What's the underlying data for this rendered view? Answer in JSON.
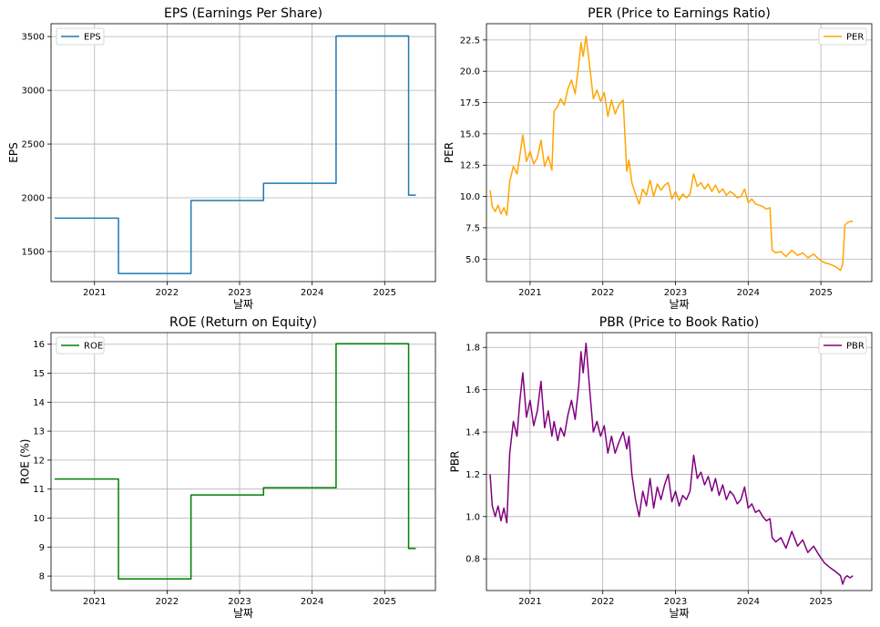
{
  "colors": {
    "eps": "#1f77b4",
    "per": "#ffa500",
    "roe": "#008000",
    "pbr": "#800080",
    "grid": "#b0b0b0",
    "axis": "#000000"
  },
  "chart_data": [
    {
      "id": "eps",
      "type": "line",
      "title": "EPS (Earnings Per Share)",
      "xlabel": "날짜",
      "ylabel": "EPS",
      "xlim": [
        2020.4,
        2025.7
      ],
      "ylim": [
        1220,
        3620
      ],
      "xticks": [
        2021,
        2022,
        2023,
        2024,
        2025
      ],
      "xtick_labels": [
        "2021",
        "2022",
        "2023",
        "2024",
        "2025"
      ],
      "yticks": [
        1500,
        2000,
        2500,
        3000,
        3500
      ],
      "ytick_labels": [
        "1500",
        "2000",
        "2500",
        "3000",
        "3500"
      ],
      "grid": true,
      "legend": "upper left",
      "series": [
        {
          "name": "EPS",
          "step": true,
          "x": [
            2020.45,
            2021.33,
            2021.33,
            2022.33,
            2022.33,
            2023.33,
            2023.33,
            2024.33,
            2024.33,
            2025.33,
            2025.33,
            2025.43
          ],
          "y": [
            1810,
            1810,
            1295,
            1295,
            1975,
            1975,
            2135,
            2135,
            3505,
            3505,
            2025,
            2025
          ]
        }
      ]
    },
    {
      "id": "per",
      "type": "line",
      "title": "PER (Price to Earnings Ratio)",
      "xlabel": "날짜",
      "ylabel": "PER",
      "xlim": [
        2020.4,
        2025.7
      ],
      "ylim": [
        3.2,
        23.8
      ],
      "xticks": [
        2021,
        2022,
        2023,
        2024,
        2025
      ],
      "xtick_labels": [
        "2021",
        "2022",
        "2023",
        "2024",
        "2025"
      ],
      "yticks": [
        5,
        7.5,
        10,
        12.5,
        15,
        17.5,
        20,
        22.5
      ],
      "ytick_labels": [
        "5.0",
        "7.5",
        "10.0",
        "12.5",
        "15.0",
        "17.5",
        "20.0",
        "22.5"
      ],
      "grid": true,
      "legend": "upper right",
      "series": [
        {
          "name": "PER",
          "x": [
            2020.45,
            2020.48,
            2020.52,
            2020.56,
            2020.6,
            2020.64,
            2020.68,
            2020.72,
            2020.77,
            2020.82,
            2020.86,
            2020.9,
            2020.95,
            2021.0,
            2021.05,
            2021.1,
            2021.15,
            2021.2,
            2021.25,
            2021.3,
            2021.33,
            2021.38,
            2021.42,
            2021.47,
            2021.52,
            2021.57,
            2021.62,
            2021.67,
            2021.7,
            2021.73,
            2021.77,
            2021.82,
            2021.87,
            2021.92,
            2021.97,
            2022.02,
            2022.07,
            2022.12,
            2022.17,
            2022.22,
            2022.28,
            2022.33,
            2022.36,
            2022.4,
            2022.45,
            2022.5,
            2022.55,
            2022.6,
            2022.65,
            2022.7,
            2022.75,
            2022.8,
            2022.85,
            2022.9,
            2022.95,
            2023.0,
            2023.05,
            2023.1,
            2023.15,
            2023.2,
            2023.25,
            2023.3,
            2023.35,
            2023.4,
            2023.45,
            2023.5,
            2023.55,
            2023.6,
            2023.65,
            2023.7,
            2023.75,
            2023.8,
            2023.85,
            2023.9,
            2023.95,
            2024.0,
            2024.05,
            2024.1,
            2024.15,
            2024.2,
            2024.25,
            2024.3,
            2024.33,
            2024.38,
            2024.45,
            2024.52,
            2024.6,
            2024.68,
            2024.75,
            2024.82,
            2024.9,
            2024.97,
            2025.05,
            2025.12,
            2025.2,
            2025.27,
            2025.3,
            2025.33,
            2025.36,
            2025.4,
            2025.44
          ],
          "y": [
            10.5,
            9.2,
            8.8,
            9.3,
            8.6,
            9.1,
            8.5,
            11.2,
            12.4,
            11.8,
            13.3,
            14.9,
            12.8,
            13.6,
            12.6,
            13.1,
            14.5,
            12.4,
            13.2,
            12.1,
            16.8,
            17.2,
            17.8,
            17.3,
            18.6,
            19.3,
            18.2,
            20.6,
            22.3,
            21.2,
            22.8,
            20.4,
            17.8,
            18.5,
            17.6,
            18.3,
            16.4,
            17.7,
            16.6,
            17.3,
            17.7,
            12.0,
            12.9,
            11.1,
            10.2,
            9.4,
            10.6,
            10.1,
            11.3,
            10.0,
            11.0,
            10.5,
            10.9,
            11.1,
            9.8,
            10.4,
            9.7,
            10.2,
            9.9,
            10.2,
            11.8,
            10.8,
            11.1,
            10.6,
            11.0,
            10.4,
            10.9,
            10.3,
            10.6,
            10.1,
            10.4,
            10.2,
            9.9,
            10.0,
            10.6,
            9.5,
            9.8,
            9.4,
            9.3,
            9.2,
            9.0,
            9.1,
            5.7,
            5.5,
            5.6,
            5.2,
            5.7,
            5.3,
            5.5,
            5.1,
            5.4,
            5.0,
            4.7,
            4.6,
            4.4,
            4.1,
            4.6,
            7.7,
            7.9,
            8.0,
            8.0
          ]
        }
      ]
    },
    {
      "id": "roe",
      "type": "line",
      "title": "ROE (Return on Equity)",
      "xlabel": "날짜",
      "ylabel": "ROE (%)",
      "xlim": [
        2020.4,
        2025.7
      ],
      "ylim": [
        7.5,
        16.4
      ],
      "xticks": [
        2021,
        2022,
        2023,
        2024,
        2025
      ],
      "xtick_labels": [
        "2021",
        "2022",
        "2023",
        "2024",
        "2025"
      ],
      "yticks": [
        8,
        9,
        10,
        11,
        12,
        13,
        14,
        15,
        16
      ],
      "ytick_labels": [
        "8",
        "9",
        "10",
        "11",
        "12",
        "13",
        "14",
        "15",
        "16"
      ],
      "grid": true,
      "legend": "upper left",
      "series": [
        {
          "name": "ROE",
          "step": true,
          "x": [
            2020.45,
            2021.33,
            2021.33,
            2022.33,
            2022.33,
            2023.33,
            2023.33,
            2024.33,
            2024.33,
            2025.33,
            2025.33,
            2025.43
          ],
          "y": [
            11.35,
            11.35,
            7.9,
            7.9,
            10.8,
            10.8,
            11.05,
            11.05,
            16.02,
            16.02,
            8.95,
            8.95
          ]
        }
      ]
    },
    {
      "id": "pbr",
      "type": "line",
      "title": "PBR (Price to Book Ratio)",
      "xlabel": "날짜",
      "ylabel": "PBR",
      "xlim": [
        2020.4,
        2025.7
      ],
      "ylim": [
        0.65,
        1.87
      ],
      "xticks": [
        2021,
        2022,
        2023,
        2024,
        2025
      ],
      "xtick_labels": [
        "2021",
        "2022",
        "2023",
        "2024",
        "2025"
      ],
      "yticks": [
        0.8,
        1.0,
        1.2,
        1.4,
        1.6,
        1.8
      ],
      "ytick_labels": [
        "0.8",
        "1.0",
        "1.2",
        "1.4",
        "1.6",
        "1.8"
      ],
      "grid": true,
      "legend": "upper right",
      "series": [
        {
          "name": "PBR",
          "x": [
            2020.45,
            2020.48,
            2020.52,
            2020.56,
            2020.6,
            2020.64,
            2020.68,
            2020.72,
            2020.77,
            2020.82,
            2020.86,
            2020.9,
            2020.95,
            2021.0,
            2021.05,
            2021.1,
            2021.15,
            2021.2,
            2021.25,
            2021.3,
            2021.33,
            2021.38,
            2021.42,
            2021.47,
            2021.52,
            2021.57,
            2021.62,
            2021.67,
            2021.7,
            2021.73,
            2021.77,
            2021.82,
            2021.87,
            2021.92,
            2021.97,
            2022.02,
            2022.07,
            2022.12,
            2022.17,
            2022.22,
            2022.28,
            2022.33,
            2022.36,
            2022.4,
            2022.45,
            2022.5,
            2022.55,
            2022.6,
            2022.65,
            2022.7,
            2022.75,
            2022.8,
            2022.85,
            2022.9,
            2022.95,
            2023.0,
            2023.05,
            2023.1,
            2023.15,
            2023.2,
            2023.25,
            2023.3,
            2023.35,
            2023.4,
            2023.45,
            2023.5,
            2023.55,
            2023.6,
            2023.65,
            2023.7,
            2023.75,
            2023.8,
            2023.85,
            2023.9,
            2023.95,
            2024.0,
            2024.05,
            2024.1,
            2024.15,
            2024.2,
            2024.25,
            2024.3,
            2024.33,
            2024.38,
            2024.45,
            2024.52,
            2024.6,
            2024.68,
            2024.75,
            2024.82,
            2024.9,
            2024.97,
            2025.05,
            2025.12,
            2025.2,
            2025.27,
            2025.3,
            2025.33,
            2025.36,
            2025.4,
            2025.44
          ],
          "y": [
            1.2,
            1.05,
            1.0,
            1.05,
            0.98,
            1.04,
            0.97,
            1.3,
            1.45,
            1.38,
            1.55,
            1.68,
            1.47,
            1.55,
            1.43,
            1.5,
            1.64,
            1.42,
            1.5,
            1.38,
            1.45,
            1.36,
            1.42,
            1.38,
            1.48,
            1.55,
            1.46,
            1.62,
            1.78,
            1.68,
            1.82,
            1.6,
            1.4,
            1.45,
            1.38,
            1.43,
            1.3,
            1.38,
            1.3,
            1.35,
            1.4,
            1.32,
            1.38,
            1.2,
            1.08,
            1.0,
            1.12,
            1.05,
            1.18,
            1.04,
            1.14,
            1.08,
            1.15,
            1.2,
            1.07,
            1.12,
            1.05,
            1.1,
            1.08,
            1.12,
            1.29,
            1.18,
            1.21,
            1.15,
            1.19,
            1.12,
            1.18,
            1.1,
            1.15,
            1.08,
            1.12,
            1.1,
            1.06,
            1.08,
            1.14,
            1.04,
            1.06,
            1.02,
            1.03,
            1.0,
            0.98,
            0.99,
            0.9,
            0.88,
            0.9,
            0.85,
            0.93,
            0.86,
            0.89,
            0.83,
            0.86,
            0.82,
            0.78,
            0.76,
            0.74,
            0.72,
            0.68,
            0.71,
            0.72,
            0.71,
            0.72
          ]
        }
      ]
    }
  ]
}
